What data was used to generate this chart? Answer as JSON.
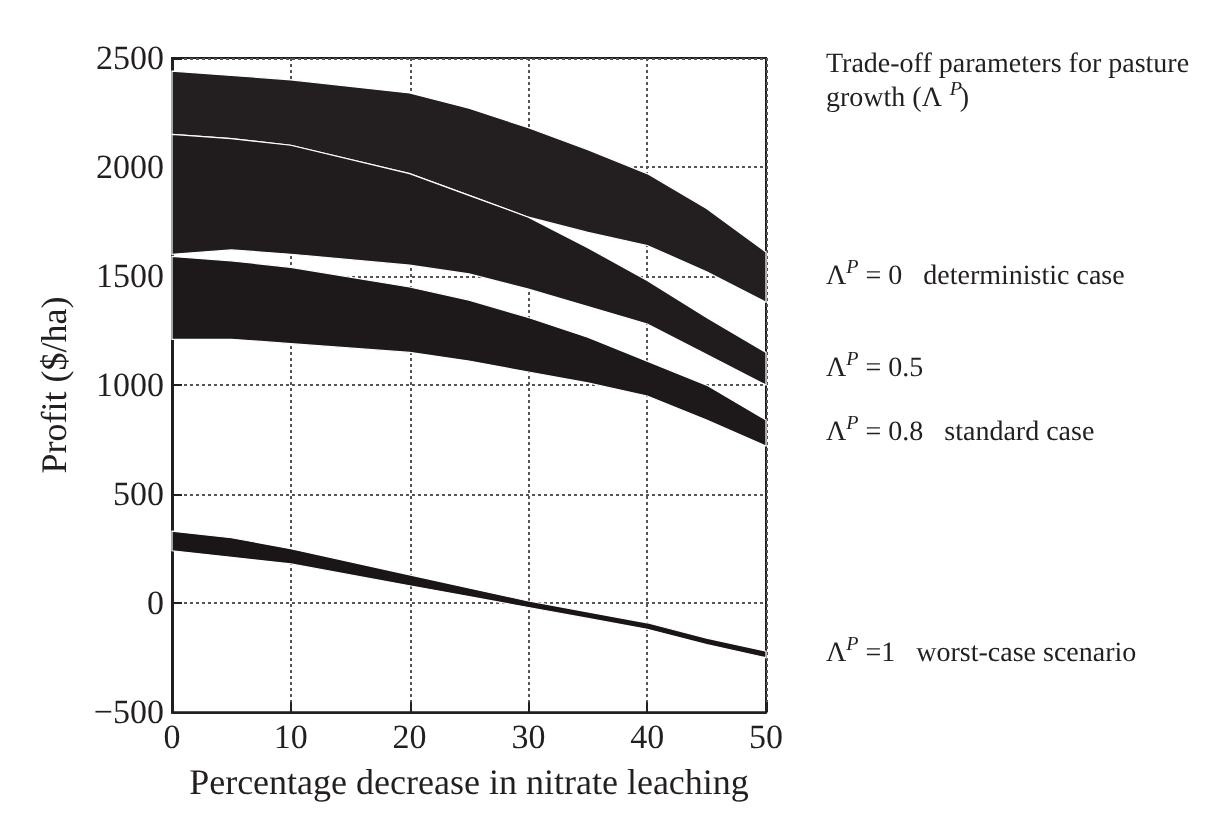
{
  "chart_data": {
    "type": "area",
    "xlabel": "Percentage decrease in nitrate leaching",
    "ylabel": "Profit ($/ha)",
    "legend_title": "Trade-off parameters for pasture growth (Λ$^{P}$)",
    "x": [
      0,
      5,
      10,
      20,
      25,
      30,
      35,
      40,
      45,
      50
    ],
    "series": [
      {
        "name": "Λ$^{P}$ = 0   deterministic case",
        "color": "#231f20",
        "values": [
          null,
          null,
          null,
          null,
          null,
          null,
          null,
          null,
          null,
          null
        ],
        "lower": [
          2150,
          2130,
          2100,
          1970,
          1870,
          1770,
          1700,
          1640,
          1520,
          1380
        ],
        "upper": [
          2440,
          2420,
          2400,
          2340,
          2270,
          2180,
          2080,
          1970,
          1810,
          1610
        ]
      },
      {
        "name": "Λ$^{P}$ = 0.5",
        "color": "#201c1d",
        "values": [
          null,
          null,
          null,
          null,
          null,
          null,
          null,
          null,
          null,
          null
        ],
        "lower": [
          1600,
          1620,
          1600,
          1550,
          1510,
          1440,
          1360,
          1280,
          1140,
          1000
        ],
        "upper": [
          2150,
          2130,
          2100,
          1970,
          1870,
          1770,
          1630,
          1480,
          1310,
          1150
        ]
      },
      {
        "name": "Λ$^{P}$ = 0.8   standard case",
        "color": "#1d191a",
        "values": [
          null,
          null,
          null,
          null,
          null,
          null,
          null,
          null,
          null,
          null
        ],
        "lower": [
          1210,
          1210,
          1190,
          1150,
          1110,
          1060,
          1010,
          950,
          840,
          720
        ],
        "upper": [
          1590,
          1570,
          1540,
          1450,
          1390,
          1310,
          1220,
          1110,
          1000,
          840
        ]
      },
      {
        "name": "Λ$^{P}$ =1   worst-case scenario",
        "color": "#1a1617",
        "values": [
          null,
          null,
          null,
          null,
          null,
          null,
          null,
          null,
          null,
          null
        ],
        "lower": [
          240,
          210,
          180,
          80,
          30,
          -20,
          -70,
          -120,
          -190,
          -250
        ],
        "upper": [
          330,
          300,
          250,
          130,
          70,
          10,
          -40,
          -90,
          -160,
          -220
        ]
      }
    ],
    "xlim": [
      0,
      50
    ],
    "xticks": [
      0,
      10,
      20,
      30,
      40,
      50
    ],
    "ylim": [
      -500,
      2500
    ],
    "yticks": [
      {
        "value": -500,
        "label": "−500"
      },
      0,
      500,
      1000,
      1500,
      2000,
      2500
    ],
    "grid": true
  }
}
